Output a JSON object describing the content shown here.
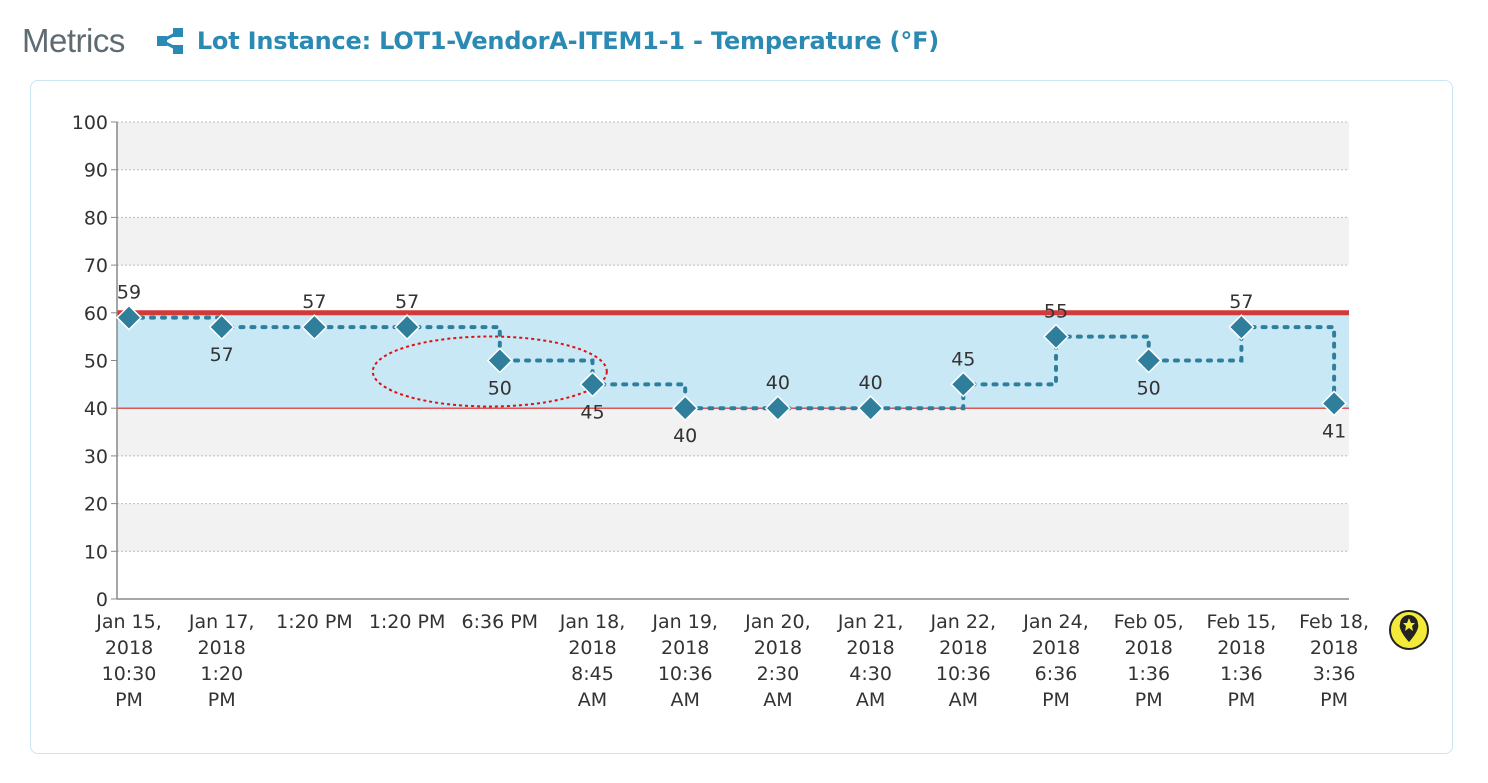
{
  "header": {
    "section_title": "Metrics",
    "lot_title": "Lot Instance: LOT1-VendorA-ITEM1-1 - Temperature (°F)"
  },
  "colors": {
    "accent": "#2b8ab3",
    "marker": "#2f7f9c",
    "band_fill": "#c9e8f6",
    "upper_limit": "#d23a3a",
    "lower_limit": "#e05555",
    "stripe": "#f2f2f2",
    "highlight_ellipse": "#e01010",
    "legend_icon_fill": "#f3ea3a"
  },
  "chart_data": {
    "type": "line",
    "title": "Lot Instance: LOT1-VendorA-ITEM1-1 - Temperature (°F)",
    "xlabel": "",
    "ylabel": "",
    "ylim": [
      0,
      100
    ],
    "yticks": [
      0,
      10,
      20,
      30,
      40,
      50,
      60,
      70,
      80,
      90,
      100
    ],
    "grid": true,
    "step": true,
    "upper_limit": 60,
    "lower_limit": 40,
    "categories": [
      [
        "Jan 15,",
        "2018",
        "10:30",
        "PM"
      ],
      [
        "Jan 17,",
        "2018",
        "1:20",
        "PM"
      ],
      [
        "1:20 PM"
      ],
      [
        "1:20 PM"
      ],
      [
        "6:36 PM"
      ],
      [
        "Jan 18,",
        "2018",
        "8:45",
        "AM"
      ],
      [
        "Jan 19,",
        "2018",
        "10:36",
        "AM"
      ],
      [
        "Jan 20,",
        "2018",
        "2:30",
        "AM"
      ],
      [
        "Jan 21,",
        "2018",
        "4:30",
        "AM"
      ],
      [
        "Jan 22,",
        "2018",
        "10:36",
        "AM"
      ],
      [
        "Jan 24,",
        "2018",
        "6:36",
        "PM"
      ],
      [
        "Feb 05,",
        "2018",
        "1:36",
        "PM"
      ],
      [
        "Feb 15,",
        "2018",
        "1:36",
        "PM"
      ],
      [
        "Feb 18,",
        "2018",
        "3:36",
        "PM"
      ]
    ],
    "series": [
      {
        "name": "Temperature (°F)",
        "values": [
          59,
          57,
          57,
          57,
          50,
          45,
          40,
          40,
          40,
          45,
          55,
          50,
          57,
          41
        ]
      }
    ],
    "label_positions": [
      "above",
      "below",
      "above",
      "above",
      "below",
      "below",
      "below",
      "above",
      "above",
      "above",
      "above",
      "below",
      "above",
      "below"
    ],
    "highlighted_point_index": 4
  }
}
